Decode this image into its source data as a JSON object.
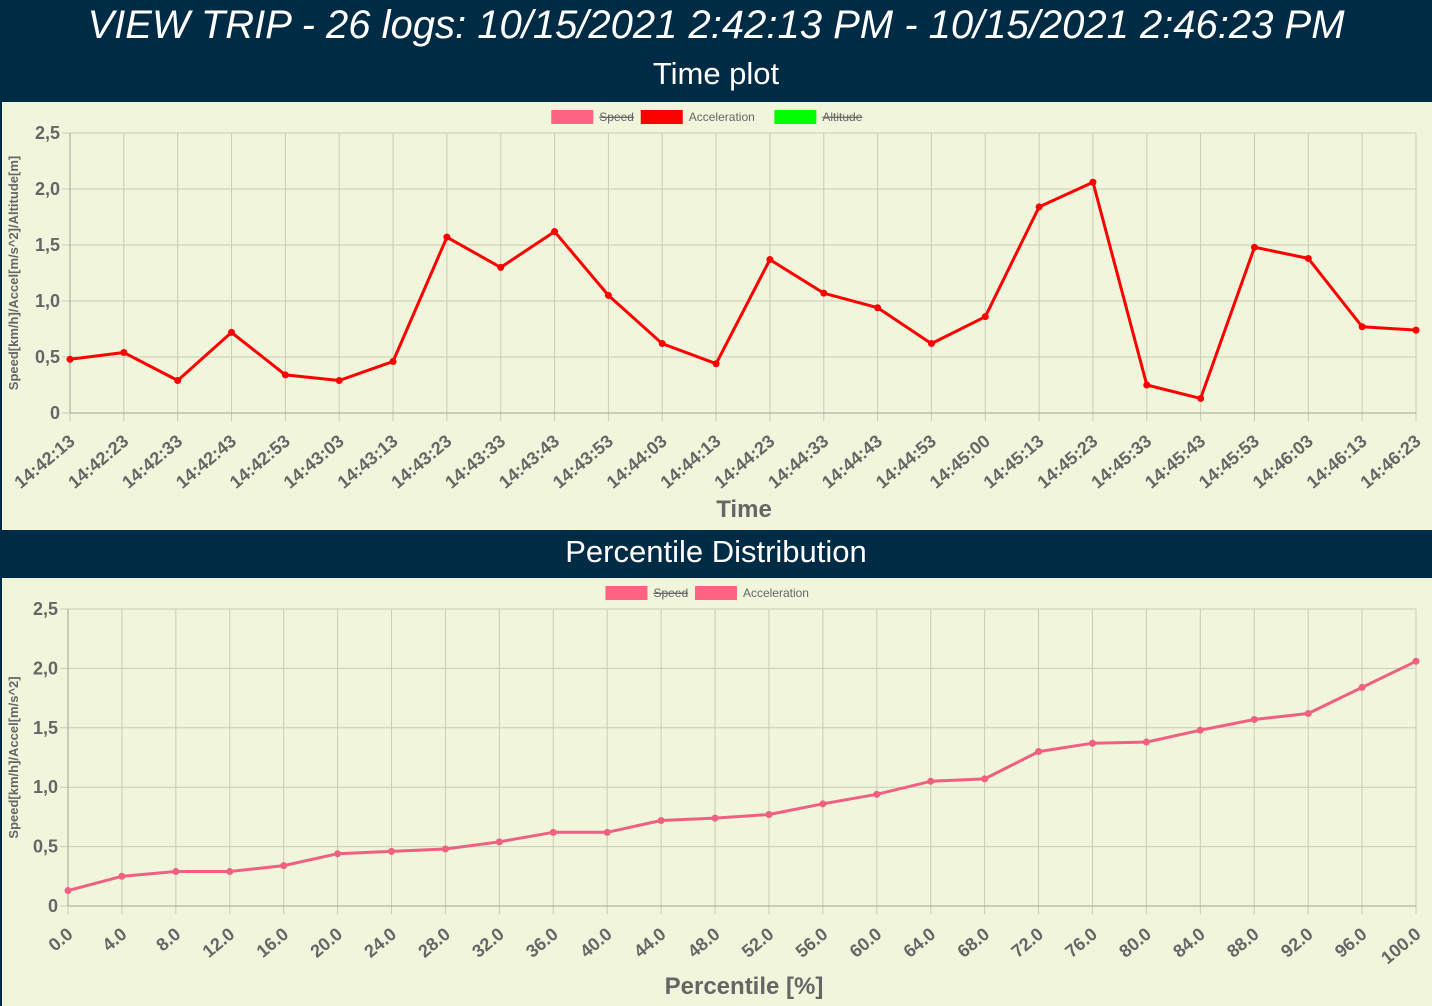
{
  "header": {
    "title": "VIEW TRIP - 26 logs: 10/15/2021 2:42:13 PM - 10/15/2021 2:46:23 PM"
  },
  "sections": {
    "time_plot_title": "Time plot",
    "percentile_title": "Percentile Distribution"
  },
  "colors": {
    "header_bg": "#002b45",
    "panel_bg": "#f0f5dc",
    "speed": "#ff6384",
    "acceleration": "#ff0000",
    "altitude": "#00ff00",
    "percentile_line": "#f06080"
  },
  "chart_data": [
    {
      "type": "line",
      "xlabel": "Time",
      "ylabel": "Speed[km/h]/Accel[m/s^2]/Altitude[m]",
      "ylim": [
        0,
        2.5
      ],
      "yticks": [
        "0",
        "0,5",
        "1,0",
        "1,5",
        "2,0",
        "2,5"
      ],
      "grid": true,
      "legend_position": "top-center",
      "legend": [
        {
          "name": "Speed",
          "hidden": true,
          "color": "#ff6384"
        },
        {
          "name": "Acceleration",
          "hidden": false,
          "color": "#ff0000"
        },
        {
          "name": "Altitude",
          "hidden": true,
          "color": "#00ff00"
        }
      ],
      "categories": [
        "14:42:13",
        "14:42:23",
        "14:42:33",
        "14:42:43",
        "14:42:53",
        "14:43:03",
        "14:43:13",
        "14:43:23",
        "14:43:33",
        "14:43:43",
        "14:43:53",
        "14:44:03",
        "14:44:13",
        "14:44:23",
        "14:44:33",
        "14:44:43",
        "14:44:53",
        "14:45:00",
        "14:45:13",
        "14:45:23",
        "14:45:33",
        "14:45:43",
        "14:45:53",
        "14:46:03",
        "14:46:13",
        "14:46:23"
      ],
      "series": [
        {
          "name": "Acceleration",
          "values": [
            0.48,
            0.54,
            0.29,
            0.72,
            0.34,
            0.29,
            0.46,
            1.57,
            1.3,
            1.62,
            1.05,
            0.62,
            0.44,
            1.37,
            1.07,
            0.94,
            0.62,
            0.86,
            1.84,
            2.06,
            0.25,
            0.13,
            1.48,
            1.38,
            0.77,
            0.74
          ]
        }
      ]
    },
    {
      "type": "line",
      "xlabel": "Percentile [%]",
      "ylabel": "Speed[km/h]/Accel[m/s^2]",
      "ylim": [
        0,
        2.5
      ],
      "yticks": [
        "0",
        "0,5",
        "1,0",
        "1,5",
        "2,0",
        "2,5"
      ],
      "grid": true,
      "legend_position": "top-center",
      "legend": [
        {
          "name": "Speed",
          "hidden": true,
          "color": "#ff6384"
        },
        {
          "name": "Acceleration",
          "hidden": false,
          "color": "#ff6384"
        }
      ],
      "categories": [
        "0.0",
        "4.0",
        "8.0",
        "12.0",
        "16.0",
        "20.0",
        "24.0",
        "28.0",
        "32.0",
        "36.0",
        "40.0",
        "44.0",
        "48.0",
        "52.0",
        "56.0",
        "60.0",
        "64.0",
        "68.0",
        "72.0",
        "76.0",
        "80.0",
        "84.0",
        "88.0",
        "92.0",
        "96.0",
        "100.0"
      ],
      "series": [
        {
          "name": "Acceleration",
          "values": [
            0.13,
            0.25,
            0.29,
            0.29,
            0.34,
            0.44,
            0.46,
            0.48,
            0.54,
            0.62,
            0.62,
            0.72,
            0.74,
            0.77,
            0.86,
            0.94,
            1.05,
            1.07,
            1.3,
            1.37,
            1.38,
            1.48,
            1.57,
            1.62,
            1.84,
            2.06
          ]
        }
      ]
    }
  ]
}
